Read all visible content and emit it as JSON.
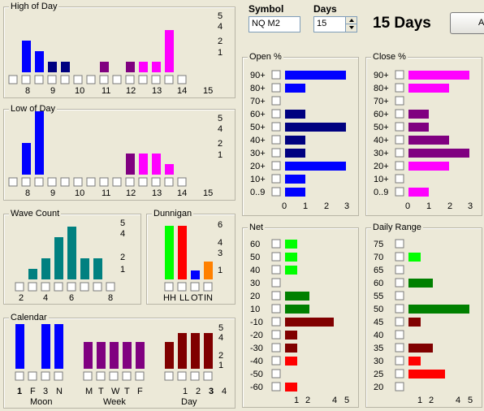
{
  "header": {
    "symbol_label": "Symbol",
    "symbol_value": "NQ M2",
    "days_label": "Days",
    "days_value": "15",
    "days_display": "15 Days",
    "all_button": "All"
  },
  "colors": {
    "blue": "#0000ff",
    "navy": "#000080",
    "purple": "#800080",
    "magenta": "#ff00ff",
    "teal": "#008080",
    "lime": "#00ff00",
    "red": "#ff0000",
    "orange": "#ff8000",
    "maroon": "#800000",
    "green": "#008000",
    "darkred": "#800000"
  },
  "panels": {
    "high_of_day": {
      "title": "High of Day",
      "yticks": [
        "5",
        "4",
        "2",
        "1"
      ],
      "xlabels": [
        "8",
        "9",
        "10",
        "11",
        "12",
        "13",
        "14",
        "15"
      ],
      "bars": [
        {
          "v": 0,
          "c": "blue"
        },
        {
          "v": 3,
          "c": "blue"
        },
        {
          "v": 2,
          "c": "blue"
        },
        {
          "v": 1,
          "c": "navy"
        },
        {
          "v": 1,
          "c": "navy"
        },
        {
          "v": 0,
          "c": "navy"
        },
        {
          "v": 0,
          "c": "navy"
        },
        {
          "v": 1,
          "c": "purple"
        },
        {
          "v": 0,
          "c": "purple"
        },
        {
          "v": 1,
          "c": "purple"
        },
        {
          "v": 1,
          "c": "magenta"
        },
        {
          "v": 1,
          "c": "magenta"
        },
        {
          "v": 4,
          "c": "magenta"
        },
        {
          "v": 0,
          "c": "magenta"
        }
      ]
    },
    "low_of_day": {
      "title": "Low of Day",
      "yticks": [
        "5",
        "4",
        "2",
        "1"
      ],
      "xlabels": [
        "8",
        "9",
        "10",
        "11",
        "12",
        "13",
        "14",
        "15"
      ],
      "bars": [
        {
          "v": 0,
          "c": "blue"
        },
        {
          "v": 3,
          "c": "blue"
        },
        {
          "v": 6,
          "c": "blue"
        },
        {
          "v": 0,
          "c": "navy"
        },
        {
          "v": 0,
          "c": "navy"
        },
        {
          "v": 0,
          "c": "navy"
        },
        {
          "v": 0,
          "c": "navy"
        },
        {
          "v": 0,
          "c": "purple"
        },
        {
          "v": 0,
          "c": "purple"
        },
        {
          "v": 2,
          "c": "purple"
        },
        {
          "v": 2,
          "c": "magenta"
        },
        {
          "v": 2,
          "c": "magenta"
        },
        {
          "v": 1,
          "c": "magenta"
        },
        {
          "v": 0,
          "c": "magenta"
        }
      ]
    },
    "wave_count": {
      "title": "Wave Count",
      "yticks": [
        "5",
        "4",
        "2",
        "1"
      ],
      "xlabels": [
        "2",
        "4",
        "6",
        "8"
      ],
      "bars": [
        {
          "v": 0,
          "c": "teal"
        },
        {
          "v": 1,
          "c": "teal"
        },
        {
          "v": 2,
          "c": "teal"
        },
        {
          "v": 4,
          "c": "teal"
        },
        {
          "v": 5,
          "c": "teal"
        },
        {
          "v": 2,
          "c": "teal"
        },
        {
          "v": 2,
          "c": "teal"
        },
        {
          "v": 0,
          "c": "teal"
        }
      ]
    },
    "dunnigan": {
      "title": "Dunnigan",
      "yticks": [
        "6",
        "4",
        "3",
        "1"
      ],
      "xlabels": [
        "HH",
        "LL",
        "OT",
        "IN"
      ],
      "bars": [
        {
          "v": 6,
          "c": "lime"
        },
        {
          "v": 6,
          "c": "red"
        },
        {
          "v": 1,
          "c": "blue"
        },
        {
          "v": 2,
          "c": "orange"
        }
      ]
    },
    "calendar": {
      "title": "Calendar",
      "yticks": [
        "5",
        "4",
        "2",
        "1"
      ],
      "moon": {
        "label": "Moon",
        "xlabels": [
          "1",
          "F",
          "3",
          "N"
        ],
        "bold": [
          true,
          false,
          false,
          false
        ],
        "bars": [
          {
            "v": 5,
            "c": "blue"
          },
          {
            "v": 0,
            "c": "blue"
          },
          {
            "v": 5,
            "c": "blue"
          },
          {
            "v": 5,
            "c": "blue"
          }
        ]
      },
      "week": {
        "label": "Week",
        "xlabels": [
          "M",
          "T",
          "W",
          "T",
          "F"
        ],
        "bars": [
          {
            "v": 3,
            "c": "purple"
          },
          {
            "v": 3,
            "c": "purple"
          },
          {
            "v": 3,
            "c": "purple"
          },
          {
            "v": 3,
            "c": "purple"
          },
          {
            "v": 3,
            "c": "purple"
          }
        ]
      },
      "day": {
        "label": "Day",
        "xlabels": [
          "1",
          "2",
          "3",
          "4"
        ],
        "bold": [
          false,
          false,
          true,
          false
        ],
        "bars": [
          {
            "v": 3,
            "c": "darkred"
          },
          {
            "v": 4,
            "c": "darkred"
          },
          {
            "v": 4,
            "c": "darkred"
          },
          {
            "v": 4,
            "c": "darkred"
          }
        ]
      }
    },
    "open_pct": {
      "title": "Open  %",
      "rows": [
        {
          "label": "90+",
          "v": 3,
          "c": "blue"
        },
        {
          "label": "80+",
          "v": 1,
          "c": "blue"
        },
        {
          "label": "70+",
          "v": 0,
          "c": "blue"
        },
        {
          "label": "60+",
          "v": 1,
          "c": "navy"
        },
        {
          "label": "50+",
          "v": 3,
          "c": "navy"
        },
        {
          "label": "40+",
          "v": 1,
          "c": "navy"
        },
        {
          "label": "30+",
          "v": 1,
          "c": "navy"
        },
        {
          "label": "20+",
          "v": 3,
          "c": "blue"
        },
        {
          "label": "10+",
          "v": 1,
          "c": "blue"
        },
        {
          "label": "0..9",
          "v": 1,
          "c": "blue"
        }
      ],
      "xticks": [
        "0",
        "1",
        "2",
        "3"
      ],
      "max": 3
    },
    "close_pct": {
      "title": "Close  %",
      "rows": [
        {
          "label": "90+",
          "v": 3,
          "c": "magenta"
        },
        {
          "label": "80+",
          "v": 2,
          "c": "magenta"
        },
        {
          "label": "70+",
          "v": 0,
          "c": "magenta"
        },
        {
          "label": "60+",
          "v": 1,
          "c": "purple"
        },
        {
          "label": "50+",
          "v": 1,
          "c": "purple"
        },
        {
          "label": "40+",
          "v": 2,
          "c": "purple"
        },
        {
          "label": "30+",
          "v": 3,
          "c": "purple"
        },
        {
          "label": "20+",
          "v": 2,
          "c": "magenta"
        },
        {
          "label": "10+",
          "v": 0,
          "c": "magenta"
        },
        {
          "label": "0..9",
          "v": 1,
          "c": "magenta"
        }
      ],
      "xticks": [
        "0",
        "1",
        "2",
        "3"
      ],
      "max": 3
    },
    "net": {
      "title": "Net",
      "rows": [
        {
          "label": "60",
          "v": 1,
          "c": "lime"
        },
        {
          "label": "50",
          "v": 1,
          "c": "lime"
        },
        {
          "label": "40",
          "v": 1,
          "c": "lime"
        },
        {
          "label": "30",
          "v": 0,
          "c": "lime"
        },
        {
          "label": "20",
          "v": 2,
          "c": "green"
        },
        {
          "label": "10",
          "v": 2,
          "c": "green"
        },
        {
          "label": "-10",
          "v": 4,
          "c": "maroon"
        },
        {
          "label": "-20",
          "v": 1,
          "c": "maroon"
        },
        {
          "label": "-30",
          "v": 1,
          "c": "maroon"
        },
        {
          "label": "-40",
          "v": 1,
          "c": "red"
        },
        {
          "label": "-50",
          "v": 0,
          "c": "red"
        },
        {
          "label": "-60",
          "v": 1,
          "c": "red"
        }
      ],
      "xticks": [
        "1",
        "2",
        "4",
        "5"
      ],
      "max": 5
    },
    "daily_range": {
      "title": "Daily Range",
      "rows": [
        {
          "label": "75",
          "v": 0,
          "c": "lime"
        },
        {
          "label": "70",
          "v": 1,
          "c": "lime"
        },
        {
          "label": "65",
          "v": 0,
          "c": "lime"
        },
        {
          "label": "60",
          "v": 2,
          "c": "green"
        },
        {
          "label": "55",
          "v": 0,
          "c": "green"
        },
        {
          "label": "50",
          "v": 5,
          "c": "green"
        },
        {
          "label": "45",
          "v": 1,
          "c": "maroon"
        },
        {
          "label": "40",
          "v": 0,
          "c": "maroon"
        },
        {
          "label": "35",
          "v": 2,
          "c": "maroon"
        },
        {
          "label": "30",
          "v": 1,
          "c": "red"
        },
        {
          "label": "25",
          "v": 3,
          "c": "red"
        },
        {
          "label": "20",
          "v": 0,
          "c": "red"
        }
      ],
      "xticks": [
        "1",
        "2",
        "4",
        "5"
      ],
      "max": 5
    }
  }
}
